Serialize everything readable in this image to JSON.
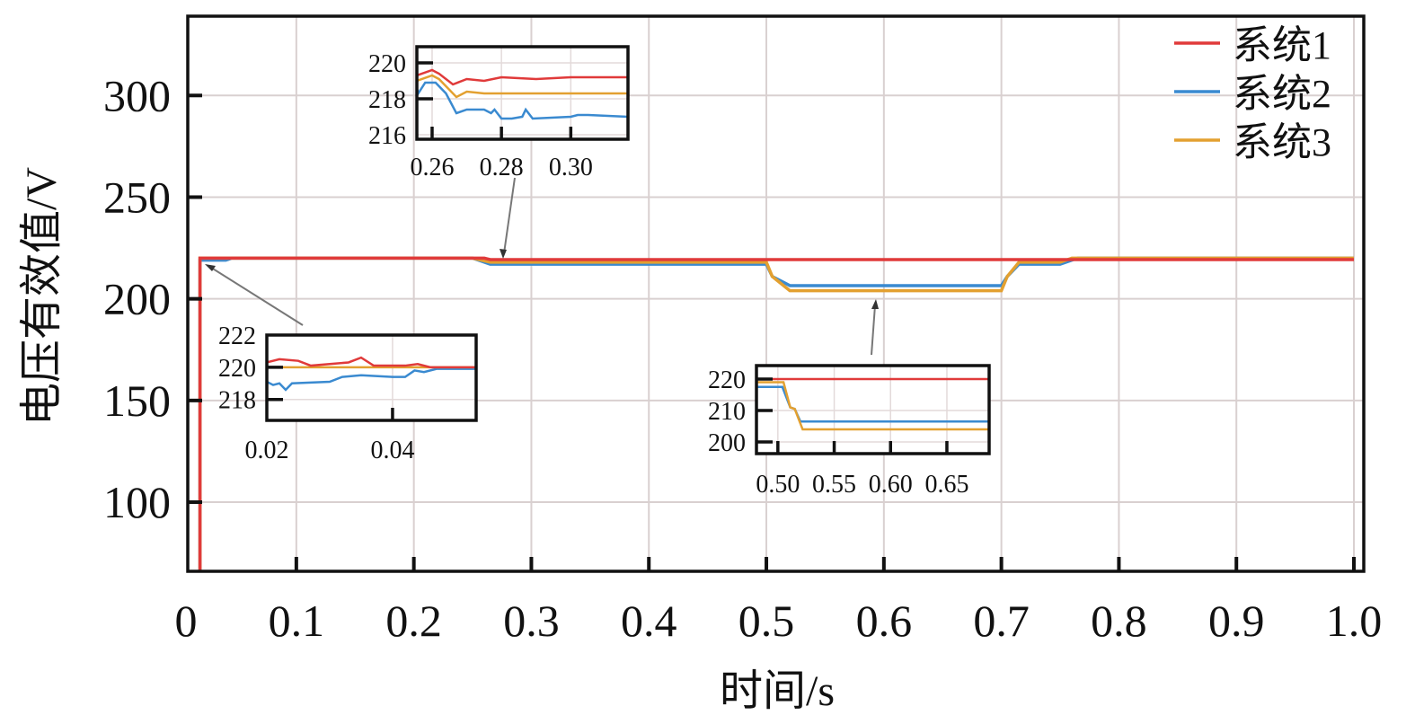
{
  "chart_data": {
    "type": "line",
    "xlabel": "时间/s",
    "ylabel": "电压有效值/V",
    "xlim": [
      0.0076,
      1.0084
    ],
    "ylim": [
      66,
      339
    ],
    "grid": true,
    "legend_position": "top-right",
    "xticks": [
      0,
      0.1,
      0.2,
      0.3,
      0.4,
      0.5,
      0.6,
      0.7,
      0.8,
      0.9,
      1.0
    ],
    "xtick_labels": [
      "0",
      "0.1",
      "0.2",
      "0.3",
      "0.4",
      "0.5",
      "0.6",
      "0.7",
      "0.8",
      "0.9",
      "1.0"
    ],
    "yticks": [
      100,
      150,
      200,
      250,
      300
    ],
    "ytick_labels": [
      "100",
      "150",
      "200",
      "250",
      "300"
    ],
    "series": [
      {
        "name": "系统1",
        "color": "#e03a3a",
        "points": [
          [
            0.018,
            60
          ],
          [
            0.018,
            220
          ],
          [
            0.26,
            220
          ],
          [
            0.265,
            219.3
          ],
          [
            1.0,
            219.3
          ]
        ]
      },
      {
        "name": "系统2",
        "color": "#3a8ad0",
        "points": [
          [
            0.018,
            60
          ],
          [
            0.018,
            219
          ],
          [
            0.04,
            219
          ],
          [
            0.045,
            220
          ],
          [
            0.25,
            220
          ],
          [
            0.265,
            217
          ],
          [
            0.5,
            217
          ],
          [
            0.505,
            211
          ],
          [
            0.52,
            206.5
          ],
          [
            0.7,
            206.5
          ],
          [
            0.705,
            211
          ],
          [
            0.715,
            217
          ],
          [
            0.75,
            217
          ],
          [
            0.765,
            220
          ],
          [
            1.0,
            220
          ]
        ]
      },
      {
        "name": "系统3",
        "color": "#e3a030",
        "points": [
          [
            0.018,
            60
          ],
          [
            0.018,
            220
          ],
          [
            0.25,
            220
          ],
          [
            0.265,
            218
          ],
          [
            0.5,
            218
          ],
          [
            0.505,
            211
          ],
          [
            0.52,
            204
          ],
          [
            0.7,
            204
          ],
          [
            0.705,
            211
          ],
          [
            0.715,
            218
          ],
          [
            0.75,
            218
          ],
          [
            0.76,
            220
          ],
          [
            1.0,
            220
          ]
        ]
      }
    ],
    "insets": [
      {
        "name": "inset-start",
        "xlim": [
          0.02,
          0.0533
        ],
        "ylim": [
          216.7,
          222
        ],
        "xticks": [
          0.02,
          0.04
        ],
        "xtick_labels": [
          "0.02",
          "0.04"
        ],
        "yticks": [
          218,
          220,
          222
        ],
        "ytick_labels": [
          "218",
          "220",
          "222"
        ],
        "series": [
          [
            [
              0.02,
              220.3
            ],
            [
              0.022,
              220.5
            ],
            [
              0.025,
              220.4
            ],
            [
              0.027,
              220.1
            ],
            [
              0.03,
              220.2
            ],
            [
              0.033,
              220.3
            ],
            [
              0.035,
              220.6
            ],
            [
              0.037,
              220.1
            ],
            [
              0.042,
              220.1
            ],
            [
              0.044,
              220.2
            ],
            [
              0.046,
              220
            ],
            [
              0.0533,
              220
            ]
          ],
          [
            [
              0.02,
              219.1
            ],
            [
              0.021,
              218.9
            ],
            [
              0.022,
              219
            ],
            [
              0.023,
              218.6
            ],
            [
              0.024,
              219
            ],
            [
              0.03,
              219.1
            ],
            [
              0.032,
              219.4
            ],
            [
              0.035,
              219.5
            ],
            [
              0.04,
              219.4
            ],
            [
              0.042,
              219.4
            ],
            [
              0.0435,
              219.8
            ],
            [
              0.045,
              219.7
            ],
            [
              0.047,
              219.9
            ],
            [
              0.0533,
              219.9
            ]
          ],
          [
            [
              0.02,
              220
            ],
            [
              0.0533,
              220
            ]
          ]
        ]
      },
      {
        "name": "inset-0.26",
        "xlim": [
          0.2556,
          0.3165
        ],
        "ylim": [
          215.75,
          220.9
        ],
        "xticks": [
          0.26,
          0.28,
          0.3
        ],
        "xtick_labels": [
          "0.26",
          "0.28",
          "0.30"
        ],
        "yticks": [
          216,
          218,
          220
        ],
        "ytick_labels": [
          "216",
          "218",
          "220"
        ],
        "series": [
          [
            [
              0.2556,
              219.3
            ],
            [
              0.26,
              219.6
            ],
            [
              0.262,
              219.4
            ],
            [
              0.266,
              218.8
            ],
            [
              0.27,
              219.1
            ],
            [
              0.275,
              219.0
            ],
            [
              0.28,
              219.2
            ],
            [
              0.29,
              219.1
            ],
            [
              0.3,
              219.2
            ],
            [
              0.3165,
              219.2
            ]
          ],
          [
            [
              0.2556,
              218.6
            ],
            [
              0.256,
              218.3
            ],
            [
              0.258,
              218.9
            ],
            [
              0.261,
              218.9
            ],
            [
              0.264,
              218.3
            ],
            [
              0.267,
              217.2
            ],
            [
              0.27,
              217.4
            ],
            [
              0.275,
              217.4
            ],
            [
              0.277,
              217.2
            ],
            [
              0.278,
              217.4
            ],
            [
              0.28,
              216.9
            ],
            [
              0.283,
              216.9
            ],
            [
              0.286,
              217
            ],
            [
              0.287,
              217.4
            ],
            [
              0.289,
              216.9
            ],
            [
              0.3,
              217.0
            ],
            [
              0.302,
              217.1
            ],
            [
              0.305,
              217.1
            ],
            [
              0.3165,
              217.0
            ]
          ],
          [
            [
              0.2556,
              219
            ],
            [
              0.26,
              219.3
            ],
            [
              0.262,
              219.1
            ],
            [
              0.267,
              218.1
            ],
            [
              0.27,
              218.4
            ],
            [
              0.275,
              218.3
            ],
            [
              0.3165,
              218.3
            ]
          ]
        ]
      },
      {
        "name": "inset-0.50",
        "xlim": [
          0.481,
          0.6875
        ],
        "ylim": [
          196.3,
          224.3
        ],
        "xticks": [
          0.5,
          0.55,
          0.6,
          0.65
        ],
        "xtick_labels": [
          "0.50",
          "0.55",
          "0.60",
          "0.65"
        ],
        "yticks": [
          200,
          210,
          220
        ],
        "ytick_labels": [
          "200",
          "210",
          "220"
        ],
        "series": [
          [
            [
              0.481,
              220
            ],
            [
              0.6875,
              220
            ]
          ],
          [
            [
              0.481,
              217.5
            ],
            [
              0.504,
              217.5
            ],
            [
              0.511,
              211
            ],
            [
              0.515,
              210.5
            ],
            [
              0.52,
              206.5
            ],
            [
              0.6875,
              206.5
            ]
          ],
          [
            [
              0.481,
              219
            ],
            [
              0.505,
              219
            ],
            [
              0.511,
              211
            ],
            [
              0.515,
              210.5
            ],
            [
              0.522,
              204
            ],
            [
              0.6875,
              204
            ]
          ]
        ]
      }
    ]
  }
}
